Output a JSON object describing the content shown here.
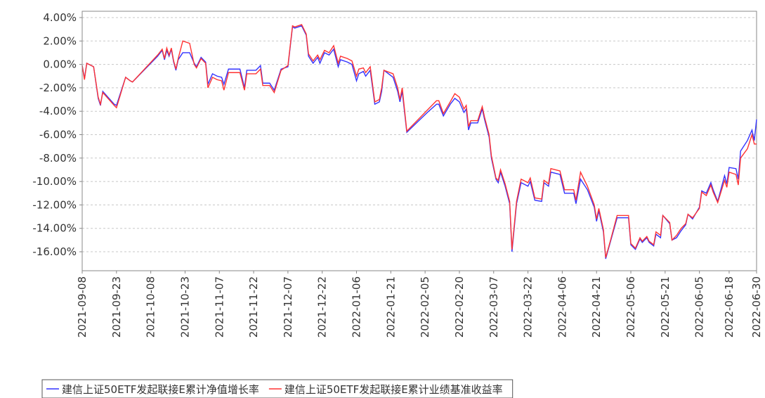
{
  "chart_data": {
    "type": "line",
    "x": [
      "2021-09-08",
      "2021-09-09",
      "2021-09-10",
      "2021-09-13",
      "2021-09-15",
      "2021-09-16",
      "2021-09-17",
      "2021-09-22",
      "2021-09-23",
      "2021-09-27",
      "2021-09-29",
      "2021-09-30",
      "2021-10-11",
      "2021-10-13",
      "2021-10-14",
      "2021-10-15",
      "2021-10-16",
      "2021-10-17",
      "2021-10-18",
      "2021-10-19",
      "2021-10-20",
      "2021-10-22",
      "2021-10-25",
      "2021-10-27",
      "2021-10-28",
      "2021-10-30",
      "2021-11-01",
      "2021-11-02",
      "2021-11-04",
      "2021-11-06",
      "2021-11-08",
      "2021-11-09",
      "2021-11-11",
      "2021-11-16",
      "2021-11-18",
      "2021-11-19",
      "2021-11-23",
      "2021-11-25",
      "2021-11-26",
      "2021-11-29",
      "2021-12-01",
      "2021-12-04",
      "2021-12-07",
      "2021-12-09",
      "2021-12-10",
      "2021-12-13",
      "2021-12-15",
      "2021-12-16",
      "2021-12-18",
      "2021-12-20",
      "2021-12-21",
      "2021-12-23",
      "2021-12-25",
      "2021-12-27",
      "2021-12-29",
      "2021-12-30",
      "2022-01-02",
      "2022-01-04",
      "2022-01-06",
      "2022-01-07",
      "2022-01-09",
      "2022-01-10",
      "2022-01-12",
      "2022-01-14",
      "2022-01-16",
      "2022-01-17",
      "2022-01-18",
      "2022-01-22",
      "2022-01-24",
      "2022-01-25",
      "2022-01-26",
      "2022-01-28",
      "2022-02-06",
      "2022-02-10",
      "2022-02-11",
      "2022-02-13",
      "2022-02-16",
      "2022-02-18",
      "2022-02-20",
      "2022-02-22",
      "2022-02-23",
      "2022-02-24",
      "2022-02-25",
      "2022-02-27",
      "2022-02-28",
      "2022-03-02",
      "2022-03-03",
      "2022-03-05",
      "2022-03-06",
      "2022-03-08",
      "2022-03-09",
      "2022-03-10",
      "2022-03-12",
      "2022-03-14",
      "2022-03-15",
      "2022-03-17",
      "2022-03-19",
      "2022-03-22",
      "2022-03-23",
      "2022-03-25",
      "2022-03-28",
      "2022-03-29",
      "2022-03-31",
      "2022-04-01",
      "2022-04-05",
      "2022-04-07",
      "2022-04-11",
      "2022-04-12",
      "2022-04-14",
      "2022-04-17",
      "2022-04-20",
      "2022-04-21",
      "2022-04-22",
      "2022-04-24",
      "2022-04-25",
      "2022-04-27",
      "2022-04-30",
      "2022-05-05",
      "2022-05-06",
      "2022-05-08",
      "2022-05-10",
      "2022-05-11",
      "2022-05-13",
      "2022-05-14",
      "2022-05-16",
      "2022-05-17",
      "2022-05-19",
      "2022-05-20",
      "2022-05-23",
      "2022-05-24",
      "2022-05-26",
      "2022-05-28",
      "2022-05-30",
      "2022-05-31",
      "2022-06-02",
      "2022-06-05",
      "2022-06-06",
      "2022-06-08",
      "2022-06-10",
      "2022-06-11",
      "2022-06-13",
      "2022-06-16",
      "2022-06-17",
      "2022-06-18",
      "2022-06-21",
      "2022-06-22",
      "2022-06-23",
      "2022-06-26",
      "2022-06-28",
      "2022-06-29",
      "2022-06-30"
    ],
    "series": [
      {
        "name": "建信上证50ETF发起联接E累计净值增长率",
        "color": "#3333ff",
        "values": [
          -0.1,
          -1.2,
          0.1,
          -0.2,
          -2.9,
          -3.5,
          -2.3,
          -3.4,
          -3.5,
          -1.1,
          -1.4,
          -1.5,
          0.7,
          1.2,
          0.4,
          1.2,
          0.7,
          1.3,
          0.2,
          -0.5,
          0.4,
          1.0,
          1.0,
          0.1,
          -0.2,
          0.6,
          0.2,
          -1.7,
          -0.8,
          -1.0,
          -1.1,
          -1.7,
          -0.4,
          -0.4,
          -2.0,
          -0.5,
          -0.5,
          -0.1,
          -1.6,
          -1.6,
          -2.2,
          -0.4,
          -0.2,
          3.2,
          3.1,
          3.3,
          2.5,
          0.7,
          0.1,
          0.6,
          0.1,
          1.0,
          0.8,
          1.3,
          -0.2,
          0.4,
          0.2,
          0.0,
          -1.4,
          -0.8,
          -0.6,
          -1.0,
          -0.5,
          -3.4,
          -3.2,
          -2.3,
          -0.5,
          -1.1,
          -2.3,
          -3.2,
          -2.3,
          -5.8,
          -4.1,
          -3.4,
          -3.4,
          -4.4,
          -3.4,
          -2.9,
          -3.2,
          -4.1,
          -3.8,
          -5.6,
          -5.0,
          -5.0,
          -5.0,
          -3.8,
          -4.7,
          -6.2,
          -8.0,
          -9.8,
          -10.1,
          -9.2,
          -10.4,
          -11.9,
          -16.0,
          -11.9,
          -10.1,
          -10.4,
          -10.0,
          -11.6,
          -11.7,
          -10.1,
          -10.4,
          -9.2,
          -9.4,
          -11.0,
          -11.0,
          -11.9,
          -9.8,
          -10.7,
          -12.2,
          -13.4,
          -12.5,
          -14.3,
          -16.6,
          -15.2,
          -13.1,
          -13.1,
          -15.4,
          -15.8,
          -14.9,
          -15.2,
          -14.8,
          -15.2,
          -15.5,
          -14.5,
          -14.8,
          -12.9,
          -13.6,
          -15.0,
          -14.8,
          -14.2,
          -13.7,
          -12.8,
          -13.2,
          -12.2,
          -10.8,
          -11.0,
          -10.1,
          -10.7,
          -11.7,
          -9.5,
          -10.2,
          -8.8,
          -8.9,
          -9.8,
          -7.4,
          -6.5,
          -5.6,
          -6.5,
          -4.7
        ]
      },
      {
        "name": "建信上证50ETF发起联接E累计业绩基准收益率",
        "color": "#ff3333",
        "values": [
          -0.1,
          -1.3,
          0.1,
          -0.2,
          -2.8,
          -3.4,
          -2.4,
          -3.5,
          -3.7,
          -1.1,
          -1.4,
          -1.5,
          0.8,
          1.3,
          0.5,
          1.4,
          0.8,
          1.4,
          0.3,
          -0.4,
          0.5,
          2.0,
          1.8,
          0.0,
          -0.3,
          0.5,
          0.1,
          -2.0,
          -1.1,
          -1.3,
          -1.4,
          -2.2,
          -0.7,
          -0.7,
          -2.2,
          -0.8,
          -0.8,
          -0.4,
          -1.8,
          -1.8,
          -2.4,
          -0.5,
          -0.1,
          3.3,
          3.2,
          3.4,
          2.6,
          0.9,
          0.3,
          0.8,
          0.4,
          1.2,
          1.0,
          1.6,
          0.1,
          0.7,
          0.5,
          0.3,
          -1.0,
          -0.4,
          -0.3,
          -0.7,
          -0.2,
          -3.2,
          -3.0,
          -2.0,
          -0.5,
          -0.8,
          -2.0,
          -3.0,
          -2.0,
          -5.7,
          -3.9,
          -3.1,
          -3.1,
          -4.2,
          -3.2,
          -2.5,
          -2.8,
          -3.8,
          -3.5,
          -5.3,
          -4.8,
          -4.8,
          -4.8,
          -3.6,
          -4.5,
          -6.0,
          -7.8,
          -9.7,
          -9.9,
          -9.0,
          -10.2,
          -11.7,
          -15.8,
          -11.7,
          -9.8,
          -10.1,
          -9.7,
          -11.4,
          -11.5,
          -9.9,
          -10.2,
          -8.9,
          -9.1,
          -10.7,
          -10.7,
          -11.6,
          -9.2,
          -10.4,
          -12.0,
          -13.2,
          -12.3,
          -14.1,
          -16.5,
          -15.1,
          -12.9,
          -12.9,
          -15.3,
          -15.7,
          -14.8,
          -15.1,
          -14.7,
          -15.1,
          -15.4,
          -14.3,
          -14.6,
          -12.9,
          -13.5,
          -15.0,
          -14.6,
          -14.0,
          -13.6,
          -12.8,
          -13.1,
          -12.3,
          -10.9,
          -11.2,
          -10.3,
          -10.9,
          -11.8,
          -9.9,
          -10.5,
          -9.2,
          -9.4,
          -10.3,
          -8.0,
          -7.2,
          -6.0,
          -6.8,
          -6.8
        ]
      }
    ],
    "xlim": [
      "2021-09-08",
      "2022-06-30"
    ],
    "xticks": [
      "2021-09-08",
      "2021-09-23",
      "2021-10-08",
      "2021-10-23",
      "2021-11-07",
      "2021-11-22",
      "2021-12-07",
      "2021-12-22",
      "2022-01-06",
      "2022-01-21",
      "2022-02-05",
      "2022-02-20",
      "2022-03-07",
      "2022-03-22",
      "2022-04-06",
      "2022-04-21",
      "2022-05-06",
      "2022-05-21",
      "2022-06-05",
      "2022-06-18",
      "2022-06-30"
    ],
    "ylim": [
      -17.62,
      4.54
    ],
    "yticks": [
      {
        "value": 4,
        "label": "4.00%"
      },
      {
        "value": 2,
        "label": "2.00%"
      },
      {
        "value": 0,
        "label": "0.00%"
      },
      {
        "value": -2,
        "label": "-2.00%"
      },
      {
        "value": -4,
        "label": "-4.00%"
      },
      {
        "value": -6,
        "label": "-6.00%"
      },
      {
        "value": -8,
        "label": "-8.00%"
      },
      {
        "value": -10,
        "label": "-10.00%"
      },
      {
        "value": -12,
        "label": "-12.00%"
      },
      {
        "value": -14,
        "label": "-14.00%"
      },
      {
        "value": -16,
        "label": "-16.00%"
      }
    ],
    "grid": true,
    "legend": "bottom"
  }
}
